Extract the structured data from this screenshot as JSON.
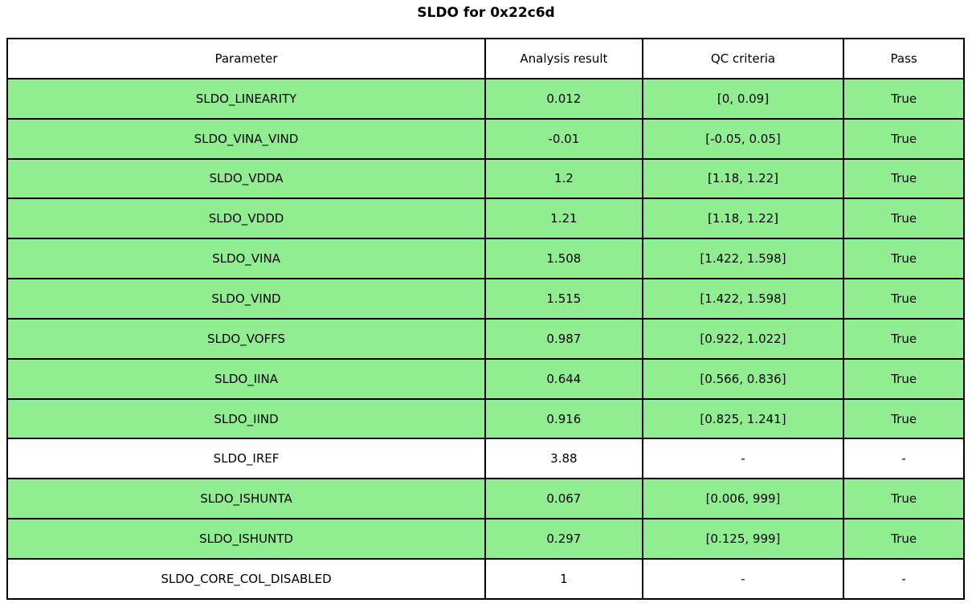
{
  "title": "SLDO for 0x22c6d",
  "colors": {
    "pass_row_green": "#90EE90",
    "neutral_row_white": "#ffffff",
    "border_black": "#000000"
  },
  "chart_data": {
    "type": "table",
    "title": "SLDO for 0x22c6d",
    "columns": [
      "Parameter",
      "Analysis result",
      "QC criteria",
      "Pass"
    ],
    "legend_position": "none",
    "grid": "full-cell-borders",
    "rows": [
      {
        "parameter": "SLDO_LINEARITY",
        "analysis_result": "0.012",
        "qc_criteria": "[0, 0.09]",
        "pass": "True",
        "highlighted": true
      },
      {
        "parameter": "SLDO_VINA_VIND",
        "analysis_result": "-0.01",
        "qc_criteria": "[-0.05, 0.05]",
        "pass": "True",
        "highlighted": true
      },
      {
        "parameter": "SLDO_VDDA",
        "analysis_result": "1.2",
        "qc_criteria": "[1.18, 1.22]",
        "pass": "True",
        "highlighted": true
      },
      {
        "parameter": "SLDO_VDDD",
        "analysis_result": "1.21",
        "qc_criteria": "[1.18, 1.22]",
        "pass": "True",
        "highlighted": true
      },
      {
        "parameter": "SLDO_VINA",
        "analysis_result": "1.508",
        "qc_criteria": "[1.422, 1.598]",
        "pass": "True",
        "highlighted": true
      },
      {
        "parameter": "SLDO_VIND",
        "analysis_result": "1.515",
        "qc_criteria": "[1.422, 1.598]",
        "pass": "True",
        "highlighted": true
      },
      {
        "parameter": "SLDO_VOFFS",
        "analysis_result": "0.987",
        "qc_criteria": "[0.922, 1.022]",
        "pass": "True",
        "highlighted": true
      },
      {
        "parameter": "SLDO_IINA",
        "analysis_result": "0.644",
        "qc_criteria": "[0.566, 0.836]",
        "pass": "True",
        "highlighted": true
      },
      {
        "parameter": "SLDO_IIND",
        "analysis_result": "0.916",
        "qc_criteria": "[0.825, 1.241]",
        "pass": "True",
        "highlighted": true
      },
      {
        "parameter": "SLDO_IREF",
        "analysis_result": "3.88",
        "qc_criteria": "-",
        "pass": "-",
        "highlighted": false
      },
      {
        "parameter": "SLDO_ISHUNTA",
        "analysis_result": "0.067",
        "qc_criteria": "[0.006, 999]",
        "pass": "True",
        "highlighted": true
      },
      {
        "parameter": "SLDO_ISHUNTD",
        "analysis_result": "0.297",
        "qc_criteria": "[0.125, 999]",
        "pass": "True",
        "highlighted": true
      },
      {
        "parameter": "SLDO_CORE_COL_DISABLED",
        "analysis_result": "1",
        "qc_criteria": "-",
        "pass": "-",
        "highlighted": false
      }
    ]
  }
}
